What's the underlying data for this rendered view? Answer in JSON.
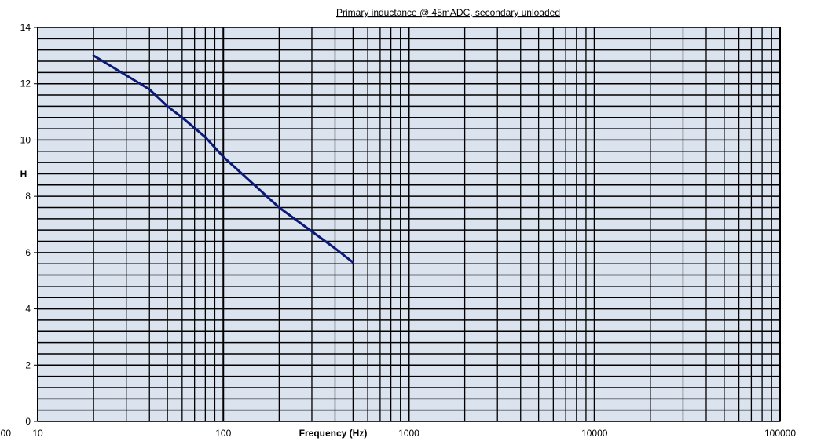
{
  "chart_data": {
    "type": "line",
    "title": "Primary inductance @ 45mADC, secondary unloaded",
    "xlabel": "Frequency (Hz)",
    "ylabel": "H",
    "x_scale": "log",
    "xlim": [
      10,
      100000
    ],
    "ylim": [
      0,
      14
    ],
    "x_tick_labels": [
      "10",
      "100",
      "1000",
      "10000",
      "100000"
    ],
    "x_tick_label_cut": "00",
    "y_tick_labels": [
      "0",
      "2",
      "4",
      "6",
      "8",
      "10",
      "12",
      "14"
    ],
    "y_minor_step": 0.4,
    "y_major_step": 2,
    "grid": true,
    "legend": "none",
    "colors": {
      "plot_bg": "#dbe3ef",
      "line": "#0a1a78",
      "grid": "#000000"
    },
    "series": [
      {
        "x": [
          20,
          30,
          40,
          50,
          60,
          80,
          100,
          200,
          300,
          400,
          500
        ],
        "y": [
          13.0,
          12.3,
          11.8,
          11.2,
          10.8,
          10.1,
          9.4,
          7.6,
          6.75,
          6.15,
          5.65
        ]
      }
    ]
  }
}
